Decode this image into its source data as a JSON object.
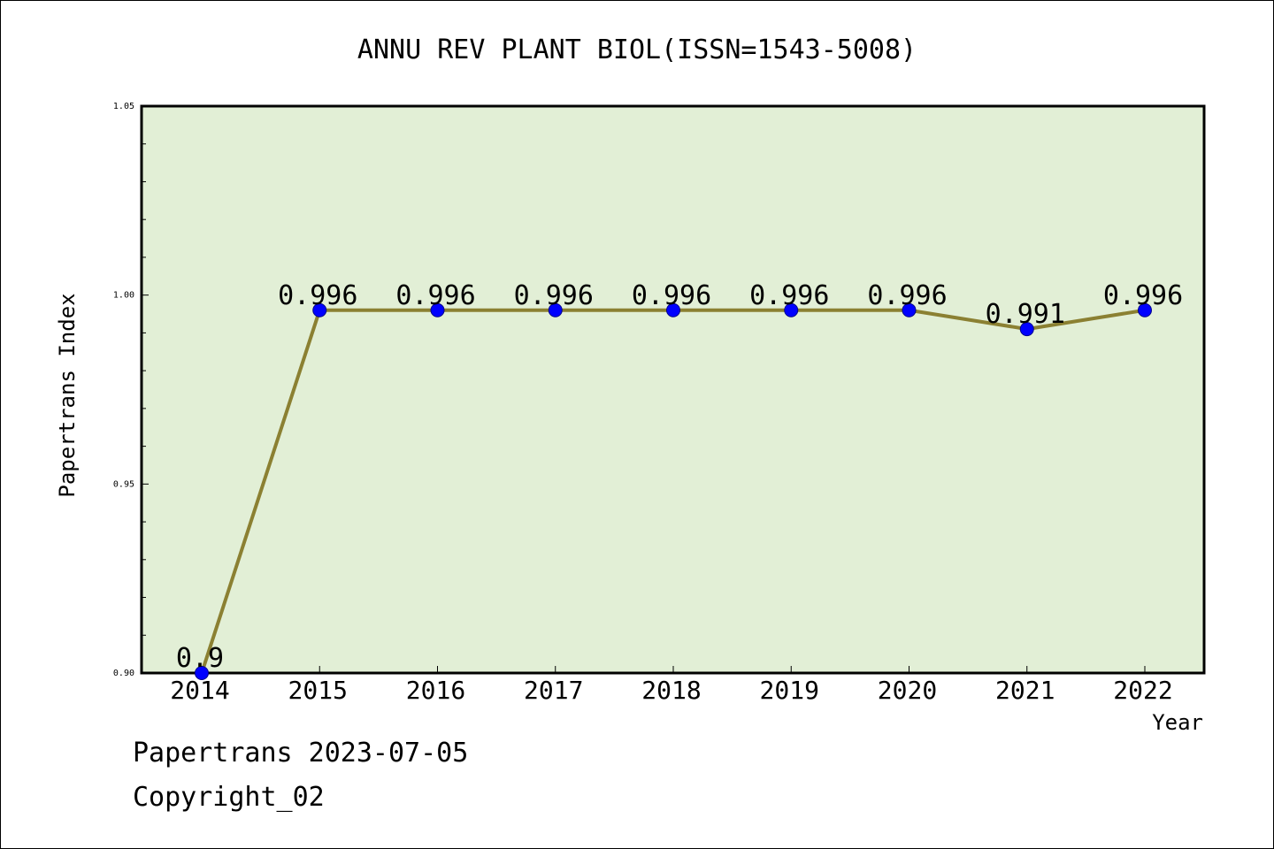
{
  "footer": {
    "line1": "Papertrans 2023-07-05",
    "line2": "Copyright_02"
  },
  "chart_data": {
    "type": "line",
    "title": "ANNU REV PLANT BIOL(ISSN=1543-5008)",
    "xlabel": "Year",
    "ylabel": "Papertrans Index",
    "categories": [
      "2014",
      "2015",
      "2016",
      "2017",
      "2018",
      "2019",
      "2020",
      "2021",
      "2022"
    ],
    "values": [
      0.9,
      0.996,
      0.996,
      0.996,
      0.996,
      0.996,
      0.996,
      0.991,
      0.996
    ],
    "data_labels": [
      "0.9",
      "0.996",
      "0.996",
      "0.996",
      "0.996",
      "0.996",
      "0.996",
      "0.991",
      "0.996"
    ],
    "ylim": [
      0.9,
      1.05
    ],
    "y_ticks": [
      "0.90",
      "0.95",
      "1.00",
      "1.05"
    ],
    "grid": false,
    "colors": {
      "plot_background": "#e2efd6",
      "line": "#8b8032",
      "marker": "#0000ff",
      "marker_edge": "#00008b"
    }
  }
}
